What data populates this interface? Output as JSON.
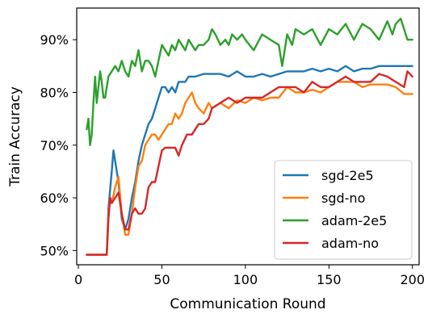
{
  "chart_data": {
    "type": "line",
    "title": "",
    "xlabel": "Communication Round",
    "ylabel": "Train Accuracy",
    "xlim": [
      -1,
      204
    ],
    "ylim": [
      0.473,
      0.96
    ],
    "xticks": [
      0,
      50,
      100,
      150,
      200
    ],
    "xtick_labels": [
      "0",
      "50",
      "100",
      "150",
      "200"
    ],
    "yticks": [
      0.5,
      0.6,
      0.7,
      0.8,
      0.9
    ],
    "ytick_labels": [
      "50%",
      "60%",
      "70%",
      "80%",
      "90%"
    ],
    "grid": false,
    "legend_position": "lower-right",
    "series": [
      {
        "name": "sgd-2e5",
        "color": "#1f77b4",
        "x": [
          5,
          10,
          15,
          17,
          18,
          20,
          21,
          22,
          24,
          26,
          28,
          30,
          32,
          34,
          36,
          38,
          40,
          42,
          44,
          46,
          48,
          50,
          52,
          54,
          56,
          58,
          60,
          62,
          64,
          66,
          68,
          70,
          75,
          80,
          85,
          90,
          95,
          100,
          105,
          110,
          115,
          120,
          125,
          130,
          135,
          140,
          145,
          150,
          155,
          160,
          165,
          170,
          175,
          180,
          185,
          190,
          195,
          200
        ],
        "y": [
          0.492,
          0.492,
          0.492,
          0.492,
          0.58,
          0.65,
          0.69,
          0.67,
          0.63,
          0.56,
          0.54,
          0.56,
          0.6,
          0.63,
          0.67,
          0.7,
          0.72,
          0.74,
          0.75,
          0.77,
          0.79,
          0.81,
          0.81,
          0.8,
          0.81,
          0.8,
          0.82,
          0.82,
          0.82,
          0.83,
          0.83,
          0.83,
          0.835,
          0.835,
          0.835,
          0.83,
          0.84,
          0.83,
          0.83,
          0.835,
          0.83,
          0.835,
          0.84,
          0.84,
          0.84,
          0.845,
          0.84,
          0.845,
          0.84,
          0.85,
          0.84,
          0.845,
          0.845,
          0.85,
          0.85,
          0.85,
          0.85,
          0.85
        ]
      },
      {
        "name": "sgd-no",
        "color": "#ff7f0e",
        "x": [
          5,
          10,
          15,
          17,
          18,
          19,
          20,
          22,
          24,
          26,
          28,
          30,
          32,
          34,
          36,
          38,
          40,
          42,
          44,
          46,
          48,
          50,
          52,
          54,
          56,
          58,
          60,
          62,
          64,
          66,
          68,
          70,
          72,
          75,
          78,
          80,
          85,
          90,
          95,
          100,
          105,
          110,
          115,
          120,
          125,
          130,
          135,
          140,
          145,
          150,
          155,
          160,
          165,
          170,
          175,
          180,
          185,
          190,
          195,
          200
        ],
        "y": [
          0.492,
          0.492,
          0.492,
          0.492,
          0.57,
          0.6,
          0.59,
          0.62,
          0.64,
          0.57,
          0.53,
          0.53,
          0.57,
          0.62,
          0.66,
          0.67,
          0.7,
          0.71,
          0.72,
          0.72,
          0.71,
          0.72,
          0.73,
          0.74,
          0.74,
          0.76,
          0.75,
          0.76,
          0.78,
          0.79,
          0.8,
          0.78,
          0.77,
          0.76,
          0.78,
          0.77,
          0.78,
          0.77,
          0.785,
          0.78,
          0.79,
          0.785,
          0.79,
          0.79,
          0.81,
          0.8,
          0.8,
          0.805,
          0.8,
          0.81,
          0.82,
          0.82,
          0.82,
          0.81,
          0.815,
          0.815,
          0.815,
          0.81,
          0.797,
          0.797
        ]
      },
      {
        "name": "adam-2e5",
        "color": "#2ca02c",
        "x": [
          5,
          6,
          7,
          8,
          9,
          10,
          11,
          12,
          13,
          14,
          15,
          16,
          17,
          18,
          20,
          22,
          24,
          26,
          28,
          30,
          32,
          34,
          36,
          38,
          40,
          42,
          44,
          46,
          48,
          50,
          52,
          54,
          56,
          58,
          60,
          62,
          64,
          66,
          68,
          70,
          72,
          75,
          78,
          80,
          82,
          85,
          88,
          90,
          92,
          95,
          98,
          100,
          105,
          110,
          115,
          120,
          122,
          125,
          128,
          130,
          135,
          140,
          145,
          150,
          155,
          160,
          165,
          170,
          175,
          180,
          185,
          188,
          190,
          193,
          195,
          197,
          200
        ],
        "y": [
          0.73,
          0.75,
          0.7,
          0.72,
          0.78,
          0.83,
          0.78,
          0.81,
          0.84,
          0.82,
          0.79,
          0.79,
          0.81,
          0.83,
          0.84,
          0.85,
          0.84,
          0.86,
          0.84,
          0.83,
          0.86,
          0.85,
          0.88,
          0.84,
          0.86,
          0.86,
          0.85,
          0.83,
          0.86,
          0.89,
          0.88,
          0.87,
          0.89,
          0.88,
          0.9,
          0.89,
          0.88,
          0.9,
          0.89,
          0.88,
          0.89,
          0.89,
          0.9,
          0.92,
          0.91,
          0.89,
          0.9,
          0.89,
          0.91,
          0.9,
          0.91,
          0.9,
          0.88,
          0.91,
          0.9,
          0.89,
          0.85,
          0.91,
          0.89,
          0.92,
          0.91,
          0.92,
          0.89,
          0.92,
          0.91,
          0.93,
          0.9,
          0.93,
          0.92,
          0.9,
          0.935,
          0.91,
          0.93,
          0.94,
          0.92,
          0.9,
          0.9
        ]
      },
      {
        "name": "adam-no",
        "color": "#d62728",
        "x": [
          5,
          10,
          15,
          17,
          18,
          19,
          20,
          22,
          24,
          26,
          28,
          30,
          32,
          34,
          36,
          38,
          40,
          42,
          44,
          46,
          48,
          50,
          52,
          55,
          58,
          60,
          62,
          65,
          68,
          70,
          72,
          75,
          78,
          80,
          85,
          90,
          95,
          100,
          105,
          110,
          115,
          120,
          125,
          130,
          135,
          140,
          145,
          150,
          155,
          160,
          165,
          170,
          175,
          180,
          185,
          190,
          195,
          197,
          200
        ],
        "y": [
          0.492,
          0.492,
          0.492,
          0.492,
          0.56,
          0.6,
          0.59,
          0.6,
          0.61,
          0.57,
          0.54,
          0.54,
          0.57,
          0.58,
          0.57,
          0.57,
          0.58,
          0.62,
          0.63,
          0.63,
          0.66,
          0.69,
          0.695,
          0.695,
          0.695,
          0.68,
          0.7,
          0.72,
          0.72,
          0.73,
          0.74,
          0.74,
          0.75,
          0.77,
          0.78,
          0.79,
          0.78,
          0.79,
          0.79,
          0.79,
          0.8,
          0.81,
          0.81,
          0.81,
          0.8,
          0.82,
          0.81,
          0.81,
          0.82,
          0.83,
          0.82,
          0.82,
          0.82,
          0.835,
          0.83,
          0.82,
          0.81,
          0.84,
          0.83
        ]
      }
    ]
  }
}
